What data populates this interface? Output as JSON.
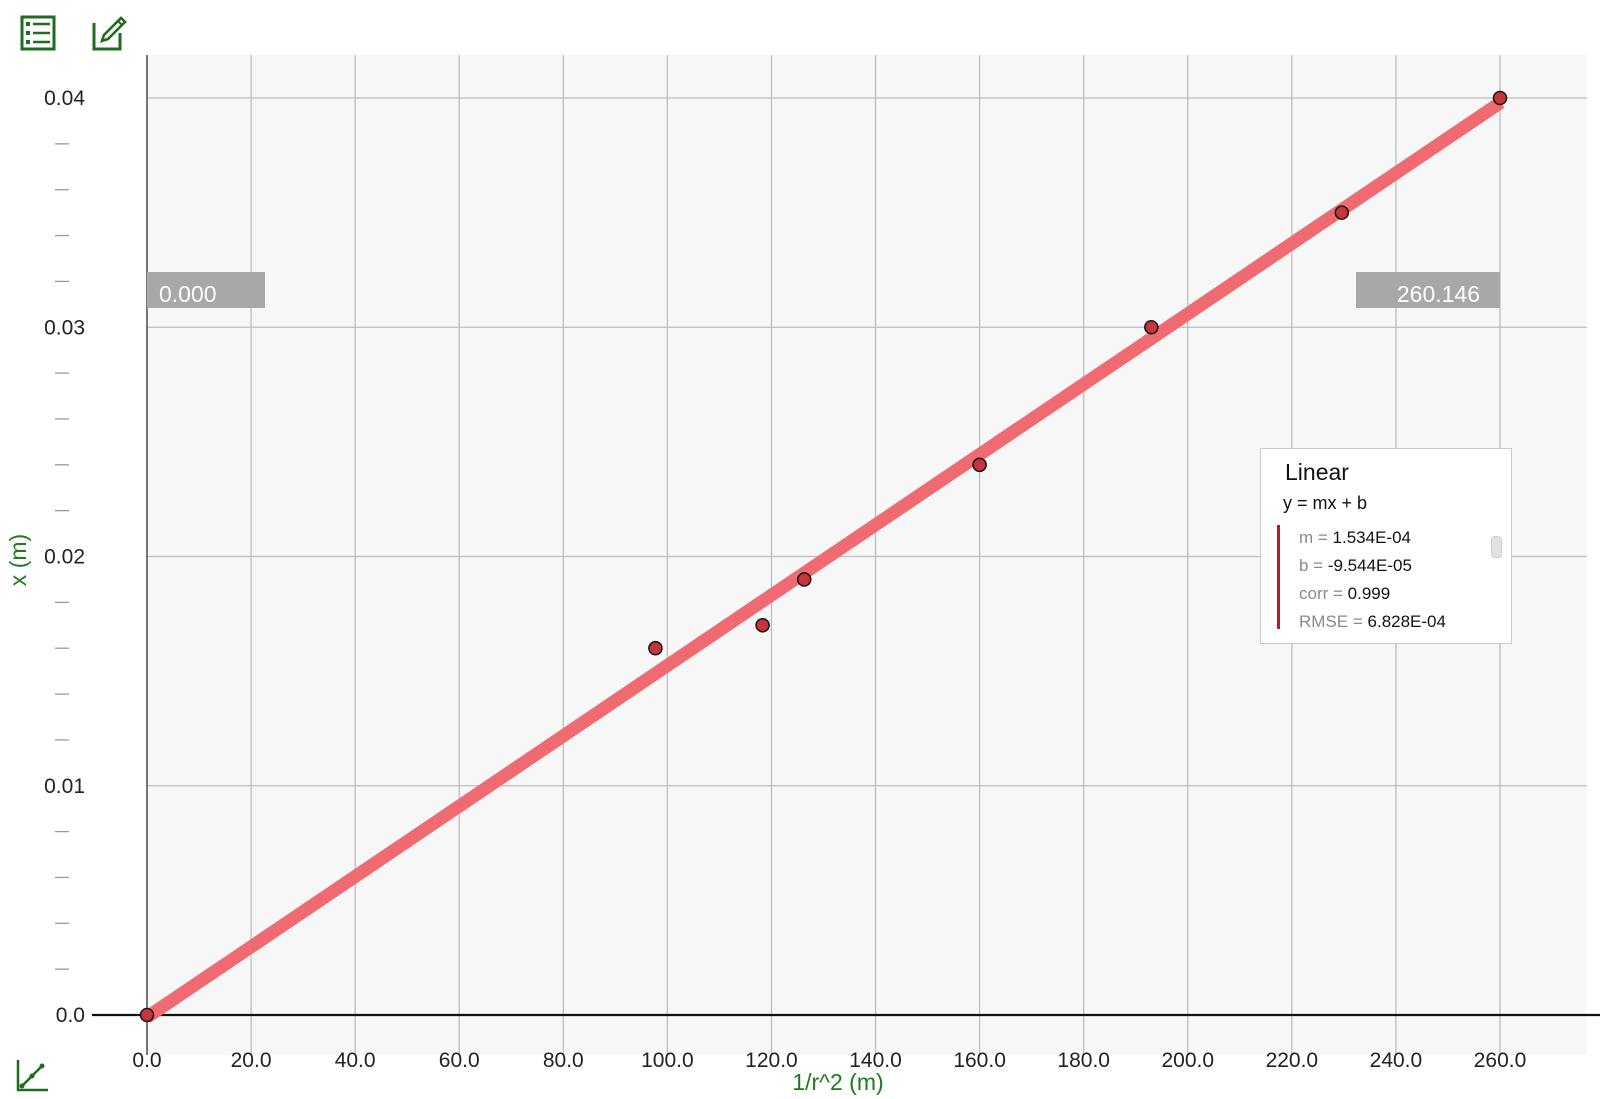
{
  "toolbar": {
    "table_icon": "table-list-icon",
    "edit_icon": "pencil-edit-icon",
    "graph_tools_icon": "graph-tools-icon",
    "accent": "#1f6b1f"
  },
  "readouts": {
    "left_value": "0.000",
    "right_value": "260.146"
  },
  "fit_legend": {
    "title": "Linear",
    "equation": "y = mx + b",
    "rows": [
      {
        "key": "m =",
        "value": "1.534E-04"
      },
      {
        "key": "b =",
        "value": "-9.544E-05"
      },
      {
        "key": "corr =",
        "value": "0.999"
      },
      {
        "key": "RMSE =",
        "value": "6.828E-04"
      }
    ]
  },
  "chart_data": {
    "type": "scatter",
    "xlabel": "1/r^2 (m)",
    "ylabel": "x (m)",
    "xlim": [
      0,
      260
    ],
    "ylim": [
      0,
      0.04
    ],
    "x_ticks": [
      "0.0",
      "20.0",
      "40.0",
      "60.0",
      "80.0",
      "100.0",
      "120.0",
      "140.0",
      "160.0",
      "180.0",
      "200.0",
      "220.0",
      "240.0",
      "260.0"
    ],
    "y_ticks": [
      "0.0",
      "0.01",
      "0.02",
      "0.03",
      "0.04"
    ],
    "grid": true,
    "series": [
      {
        "points": [
          {
            "x": 0,
            "y": 0
          },
          {
            "x": 97.7,
            "y": 0.016
          },
          {
            "x": 118.3,
            "y": 0.017
          },
          {
            "x": 126.3,
            "y": 0.019
          },
          {
            "x": 160.0,
            "y": 0.024
          },
          {
            "x": 193.0,
            "y": 0.03
          },
          {
            "x": 229.6,
            "y": 0.035
          },
          {
            "x": 260.0,
            "y": 0.04
          }
        ],
        "color": "#c8343c"
      }
    ],
    "fit": {
      "type": "linear",
      "m": 0.0001534,
      "b": -9.544e-05,
      "x_range": [
        0.0,
        260.146
      ],
      "color": "#f06a72"
    },
    "axis_label_color": "#1f7a1f"
  }
}
